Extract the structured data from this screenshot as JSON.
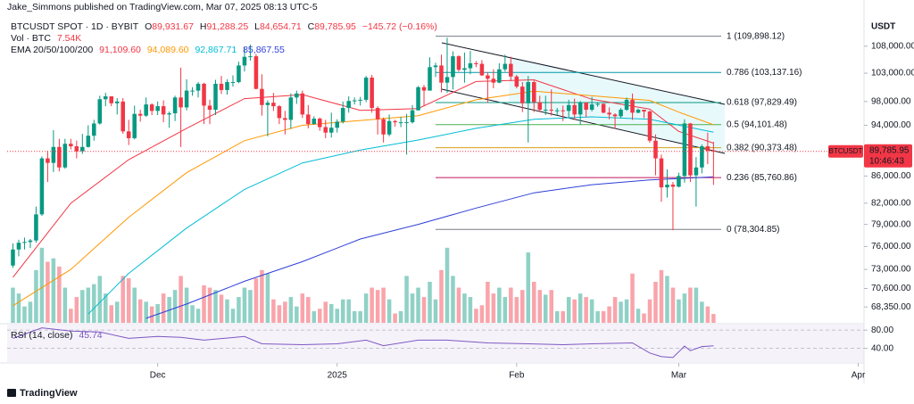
{
  "header": {
    "publisher": "Jake_Simmons published on TradingView.com, Mar 07, 2025 08:13 UTC-5",
    "logo": "TradingView",
    "currency": "USDT"
  },
  "legend": {
    "symbol": "BTCUSDT SPOT · 1D · BYBIT",
    "ohlc": [
      {
        "key": "O",
        "value": "89,931.67"
      },
      {
        "key": "H",
        "value": "91,288.25"
      },
      {
        "key": "L",
        "value": "84,654.71"
      },
      {
        "key": "C",
        "value": "89,785.95"
      }
    ],
    "change": "−145.72 (−0.16%)",
    "volume_name": "Vol · BTC",
    "volume_value": "7.54K",
    "ema_name": "EMA 20/50/100/200",
    "ema_values": [
      "91,109.60",
      "94,089.60",
      "92,867.71",
      "85,867.55"
    ]
  },
  "price_tag": {
    "symbol": "BTCUSDT",
    "price": "89,785.95",
    "countdown": "10:46:43"
  },
  "chart_data": {
    "type": "candlestick",
    "log_scale": true,
    "up_color": "#089981",
    "down_color": "#f23645",
    "xlim": [
      -1,
      147
    ],
    "xticks": [
      {
        "value": 25,
        "label": "Dec"
      },
      {
        "value": 56,
        "label": "2025"
      },
      {
        "value": 87,
        "label": "Feb"
      },
      {
        "value": 115,
        "label": "Mar"
      },
      {
        "value": 146,
        "label": "Apr"
      }
    ],
    "ylim": [
      66470,
      113500
    ],
    "yticks": [
      {
        "value": 108000,
        "label": "108,000.00"
      },
      {
        "value": 103000,
        "label": "103,000.00"
      },
      {
        "value": 98000,
        "label": "98,000.00"
      },
      {
        "value": 94000,
        "label": "94,000.00"
      },
      {
        "value": 86000,
        "label": "86,000.00"
      },
      {
        "value": 82000,
        "label": "82,000.00"
      },
      {
        "value": 79000,
        "label": "79,000.00"
      },
      {
        "value": 76000,
        "label": "76,000.00"
      },
      {
        "value": 73000,
        "label": "73,000.00"
      },
      {
        "value": 70600,
        "label": "70,600.00"
      },
      {
        "value": 68350,
        "label": "68,350.00"
      }
    ],
    "ohlc": [
      [
        73500,
        76400,
        73200,
        75600
      ],
      [
        75600,
        76900,
        74700,
        76500
      ],
      [
        76500,
        77200,
        75600,
        76600
      ],
      [
        76600,
        77000,
        75800,
        76800
      ],
      [
        76800,
        81500,
        76500,
        80400
      ],
      [
        80400,
        89000,
        80200,
        88700
      ],
      [
        88700,
        89900,
        85100,
        88000
      ],
      [
        88000,
        93200,
        86600,
        90500
      ],
      [
        90500,
        91800,
        86700,
        87300
      ],
      [
        87300,
        91800,
        87100,
        91000
      ],
      [
        91000,
        91800,
        90100,
        90600
      ],
      [
        90600,
        91500,
        88700,
        89800
      ],
      [
        89800,
        92600,
        89400,
        90500
      ],
      [
        90500,
        94000,
        90400,
        92300
      ],
      [
        92300,
        94900,
        91500,
        94300
      ],
      [
        94300,
        99000,
        94100,
        98400
      ],
      [
        98400,
        99500,
        97200,
        98900
      ],
      [
        98900,
        98900,
        97200,
        97700
      ],
      [
        97700,
        98600,
        95800,
        98000
      ],
      [
        98000,
        98600,
        92600,
        93000
      ],
      [
        93000,
        94900,
        90800,
        91900
      ],
      [
        91900,
        97300,
        91700,
        95900
      ],
      [
        95900,
        96600,
        94600,
        95600
      ],
      [
        95600,
        98700,
        95400,
        97500
      ],
      [
        97500,
        97700,
        95700,
        96400
      ],
      [
        96400,
        98000,
        95700,
        97200
      ],
      [
        97200,
        98200,
        94500,
        95800
      ],
      [
        95800,
        96300,
        93600,
        96000
      ],
      [
        96000,
        99000,
        94700,
        98700
      ],
      [
        98700,
        104000,
        90500,
        97000
      ],
      [
        97000,
        101900,
        96500,
        99900
      ],
      [
        99900,
        100500,
        99000,
        99900
      ],
      [
        99900,
        101400,
        98700,
        101100
      ],
      [
        101100,
        101300,
        94200,
        97300
      ],
      [
        97300,
        98300,
        94200,
        96600
      ],
      [
        96600,
        101800,
        95700,
        101100
      ],
      [
        101100,
        102500,
        99300,
        100000
      ],
      [
        100000,
        101900,
        99200,
        101400
      ],
      [
        101400,
        102600,
        100600,
        101400
      ],
      [
        101400,
        105100,
        101200,
        104400
      ],
      [
        104400,
        107800,
        103300,
        106000
      ],
      [
        106000,
        108300,
        105300,
        106100
      ],
      [
        106100,
        106500,
        100100,
        100200
      ],
      [
        100200,
        102800,
        95600,
        97400
      ],
      [
        97400,
        98200,
        92200,
        97800
      ],
      [
        97800,
        99500,
        96400,
        97200
      ],
      [
        97200,
        97400,
        94200,
        95200
      ],
      [
        95200,
        96400,
        92500,
        94900
      ],
      [
        94900,
        99400,
        93400,
        98700
      ],
      [
        98700,
        99900,
        97600,
        99400
      ],
      [
        99400,
        99900,
        95200,
        95800
      ],
      [
        95800,
        97400,
        93500,
        94200
      ],
      [
        94200,
        95500,
        94100,
        95100
      ],
      [
        95100,
        95300,
        93100,
        93700
      ],
      [
        93700,
        94900,
        91900,
        92800
      ],
      [
        92800,
        96100,
        92000,
        93600
      ],
      [
        93600,
        95000,
        92800,
        94600
      ],
      [
        94600,
        98000,
        94300,
        96900
      ],
      [
        96900,
        98900,
        96100,
        98100
      ],
      [
        98100,
        98700,
        97500,
        98200
      ],
      [
        98200,
        98800,
        97300,
        98300
      ],
      [
        98300,
        102500,
        97900,
        102200
      ],
      [
        102200,
        102700,
        96100,
        96900
      ],
      [
        96900,
        97200,
        92500,
        95000
      ],
      [
        95000,
        95300,
        91200,
        92500
      ],
      [
        92500,
        95800,
        92200,
        94700
      ],
      [
        94700,
        94900,
        93800,
        94500
      ],
      [
        94500,
        95400,
        93700,
        94500
      ],
      [
        94500,
        95900,
        89300,
        94500
      ],
      [
        94500,
        97400,
        94300,
        96500
      ],
      [
        96500,
        100700,
        96500,
        100500
      ],
      [
        100500,
        100900,
        97300,
        99900
      ],
      [
        99900,
        105900,
        99900,
        104100
      ],
      [
        104100,
        104900,
        102300,
        104400
      ],
      [
        104400,
        106400,
        99600,
        101300
      ],
      [
        101300,
        109600,
        99500,
        102300
      ],
      [
        102300,
        107000,
        100100,
        106100
      ],
      [
        106100,
        106300,
        103300,
        103600
      ],
      [
        103600,
        106800,
        101300,
        103900
      ],
      [
        103900,
        107100,
        102800,
        104800
      ],
      [
        104800,
        105200,
        104100,
        104700
      ],
      [
        104700,
        105400,
        102500,
        102600
      ],
      [
        102600,
        103200,
        97800,
        102000
      ],
      [
        102000,
        103700,
        100300,
        101300
      ],
      [
        101300,
        104800,
        101200,
        103700
      ],
      [
        103700,
        106400,
        103300,
        104700
      ],
      [
        104700,
        106000,
        101600,
        102400
      ],
      [
        102400,
        102700,
        100300,
        100600
      ],
      [
        100600,
        101400,
        96200,
        97700
      ],
      [
        97700,
        102500,
        91200,
        101400
      ],
      [
        101400,
        101700,
        96200,
        97900
      ],
      [
        97900,
        99000,
        96200,
        96600
      ],
      [
        96600,
        99000,
        95700,
        96600
      ],
      [
        96600,
        100100,
        95600,
        96500
      ],
      [
        96500,
        96900,
        95700,
        96500
      ],
      [
        96500,
        97300,
        94700,
        96400
      ],
      [
        96400,
        98300,
        95300,
        97400
      ],
      [
        97400,
        98500,
        94900,
        95800
      ],
      [
        95800,
        98100,
        94100,
        97800
      ],
      [
        97800,
        97900,
        95300,
        96600
      ],
      [
        96600,
        98800,
        96300,
        97500
      ],
      [
        97500,
        97900,
        97100,
        97600
      ],
      [
        97600,
        97700,
        96000,
        96100
      ],
      [
        96100,
        97000,
        95000,
        95800
      ],
      [
        95800,
        96000,
        93400,
        95500
      ],
      [
        95500,
        96900,
        95200,
        96600
      ],
      [
        96600,
        98700,
        96400,
        98300
      ],
      [
        98300,
        99400,
        94900,
        96100
      ],
      [
        96100,
        96800,
        96000,
        96600
      ],
      [
        96600,
        96600,
        95200,
        96300
      ],
      [
        96300,
        96500,
        91200,
        91500
      ],
      [
        91500,
        92500,
        86100,
        88700
      ],
      [
        88700,
        89300,
        82200,
        84300
      ],
      [
        84300,
        87000,
        82800,
        84700
      ],
      [
        84700,
        85100,
        78200,
        84400
      ],
      [
        84400,
        86500,
        84300,
        86000
      ],
      [
        86000,
        95000,
        85000,
        94300
      ],
      [
        94300,
        94400,
        85100,
        86100
      ],
      [
        86100,
        88900,
        81500,
        87300
      ],
      [
        87300,
        90900,
        86400,
        90600
      ],
      [
        90600,
        92800,
        87800,
        89900
      ],
      [
        89931.67,
        91288.25,
        84654.71,
        89785.95
      ]
    ],
    "vlim": [
      0,
      260
    ],
    "volume": [
      30,
      25,
      14,
      18,
      45,
      64,
      52,
      55,
      48,
      30,
      12,
      22,
      28,
      30,
      33,
      40,
      25,
      15,
      18,
      40,
      38,
      30,
      20,
      18,
      14,
      16,
      25,
      22,
      28,
      40,
      30,
      15,
      12,
      32,
      30,
      28,
      24,
      20,
      12,
      22,
      30,
      28,
      38,
      45,
      42,
      20,
      15,
      18,
      22,
      14,
      25,
      22,
      10,
      12,
      18,
      16,
      12,
      20,
      20,
      10,
      10,
      25,
      30,
      28,
      30,
      20,
      8,
      10,
      40,
      25,
      30,
      22,
      35,
      20,
      45,
      64,
      40,
      30,
      25,
      22,
      12,
      15,
      35,
      25,
      30,
      22,
      30,
      22,
      28,
      60,
      35,
      28,
      24,
      28,
      10,
      10,
      22,
      20,
      25,
      22,
      20,
      10,
      10,
      14,
      22,
      18,
      20,
      42,
      12,
      8,
      20,
      35,
      45,
      40,
      30,
      20,
      25,
      30,
      30,
      18,
      14,
      7.54
    ],
    "series": [
      {
        "color": "#f23645",
        "x": [
          0,
          10,
          20,
          30,
          40,
          50,
          60,
          70,
          80,
          90,
          100,
          110,
          115,
          121
        ],
        "values": [
          72000,
          82000,
          88500,
          93500,
          98500,
          99200,
          96500,
          96800,
          101500,
          101800,
          98400,
          96700,
          93000,
          91109.6
        ]
      },
      {
        "color": "#ff9800",
        "x": [
          0,
          10,
          20,
          30,
          40,
          50,
          60,
          70,
          80,
          90,
          100,
          110,
          115,
          121
        ],
        "values": [
          68500,
          73000,
          80000,
          86500,
          91500,
          94000,
          94800,
          95600,
          98300,
          99800,
          99000,
          98200,
          96200,
          94089.6
        ]
      },
      {
        "color": "#00bcd4",
        "x": [
          13,
          20,
          30,
          40,
          50,
          60,
          70,
          80,
          90,
          100,
          110,
          121
        ],
        "values": [
          67500,
          72500,
          78500,
          84000,
          88000,
          90000,
          91600,
          93500,
          95000,
          95400,
          95000,
          92867.71
        ]
      },
      {
        "color": "#2f3fd8",
        "x": [
          23,
          30,
          40,
          50,
          60,
          70,
          80,
          90,
          100,
          110,
          121
        ],
        "values": [
          67000,
          68700,
          71500,
          74000,
          77000,
          79000,
          81300,
          83500,
          84700,
          85400,
          85867.55
        ]
      }
    ],
    "fib": [
      {
        "value": 109898.12,
        "label": "1 (109,898.12)",
        "color": "#787b86"
      },
      {
        "value": 103137.16,
        "label": "0.786 (103,137.16)",
        "color": "#0097a7"
      },
      {
        "value": 97829.49,
        "label": "0.618 (97,829.49)",
        "color": "#089981"
      },
      {
        "value": 94101.48,
        "label": "0.5 (94,101.48)",
        "color": "#4caf50"
      },
      {
        "value": 90373.48,
        "label": "0.382 (90,373.48)",
        "color": "#d4a017"
      },
      {
        "value": 85760.86,
        "label": "0.236 (85,760.86)",
        "color": "#c2185b"
      },
      {
        "value": 78304.85,
        "label": "0 (78,304.85)",
        "color": "#787b86"
      }
    ],
    "rsi": {
      "name": "RSI (14, close)",
      "value_label": "45.74",
      "color": "#7e57c2",
      "ylim": [
        10,
        92
      ],
      "yticks": [
        {
          "value": 80,
          "label": "80.00"
        },
        {
          "value": 40,
          "label": "40.00"
        }
      ],
      "x": [
        0,
        5,
        10,
        15,
        20,
        25,
        29,
        33,
        40,
        43,
        50,
        56,
        61,
        64,
        70,
        75,
        82,
        89,
        95,
        100,
        107,
        110,
        112,
        114,
        116,
        117,
        119,
        121
      ],
      "values": [
        62,
        85,
        78,
        76,
        62,
        66,
        64,
        58,
        66,
        50,
        48,
        50,
        58,
        46,
        58,
        58,
        52,
        50,
        48,
        50,
        52,
        30,
        22,
        20,
        45,
        35,
        44,
        45.74
      ]
    }
  }
}
